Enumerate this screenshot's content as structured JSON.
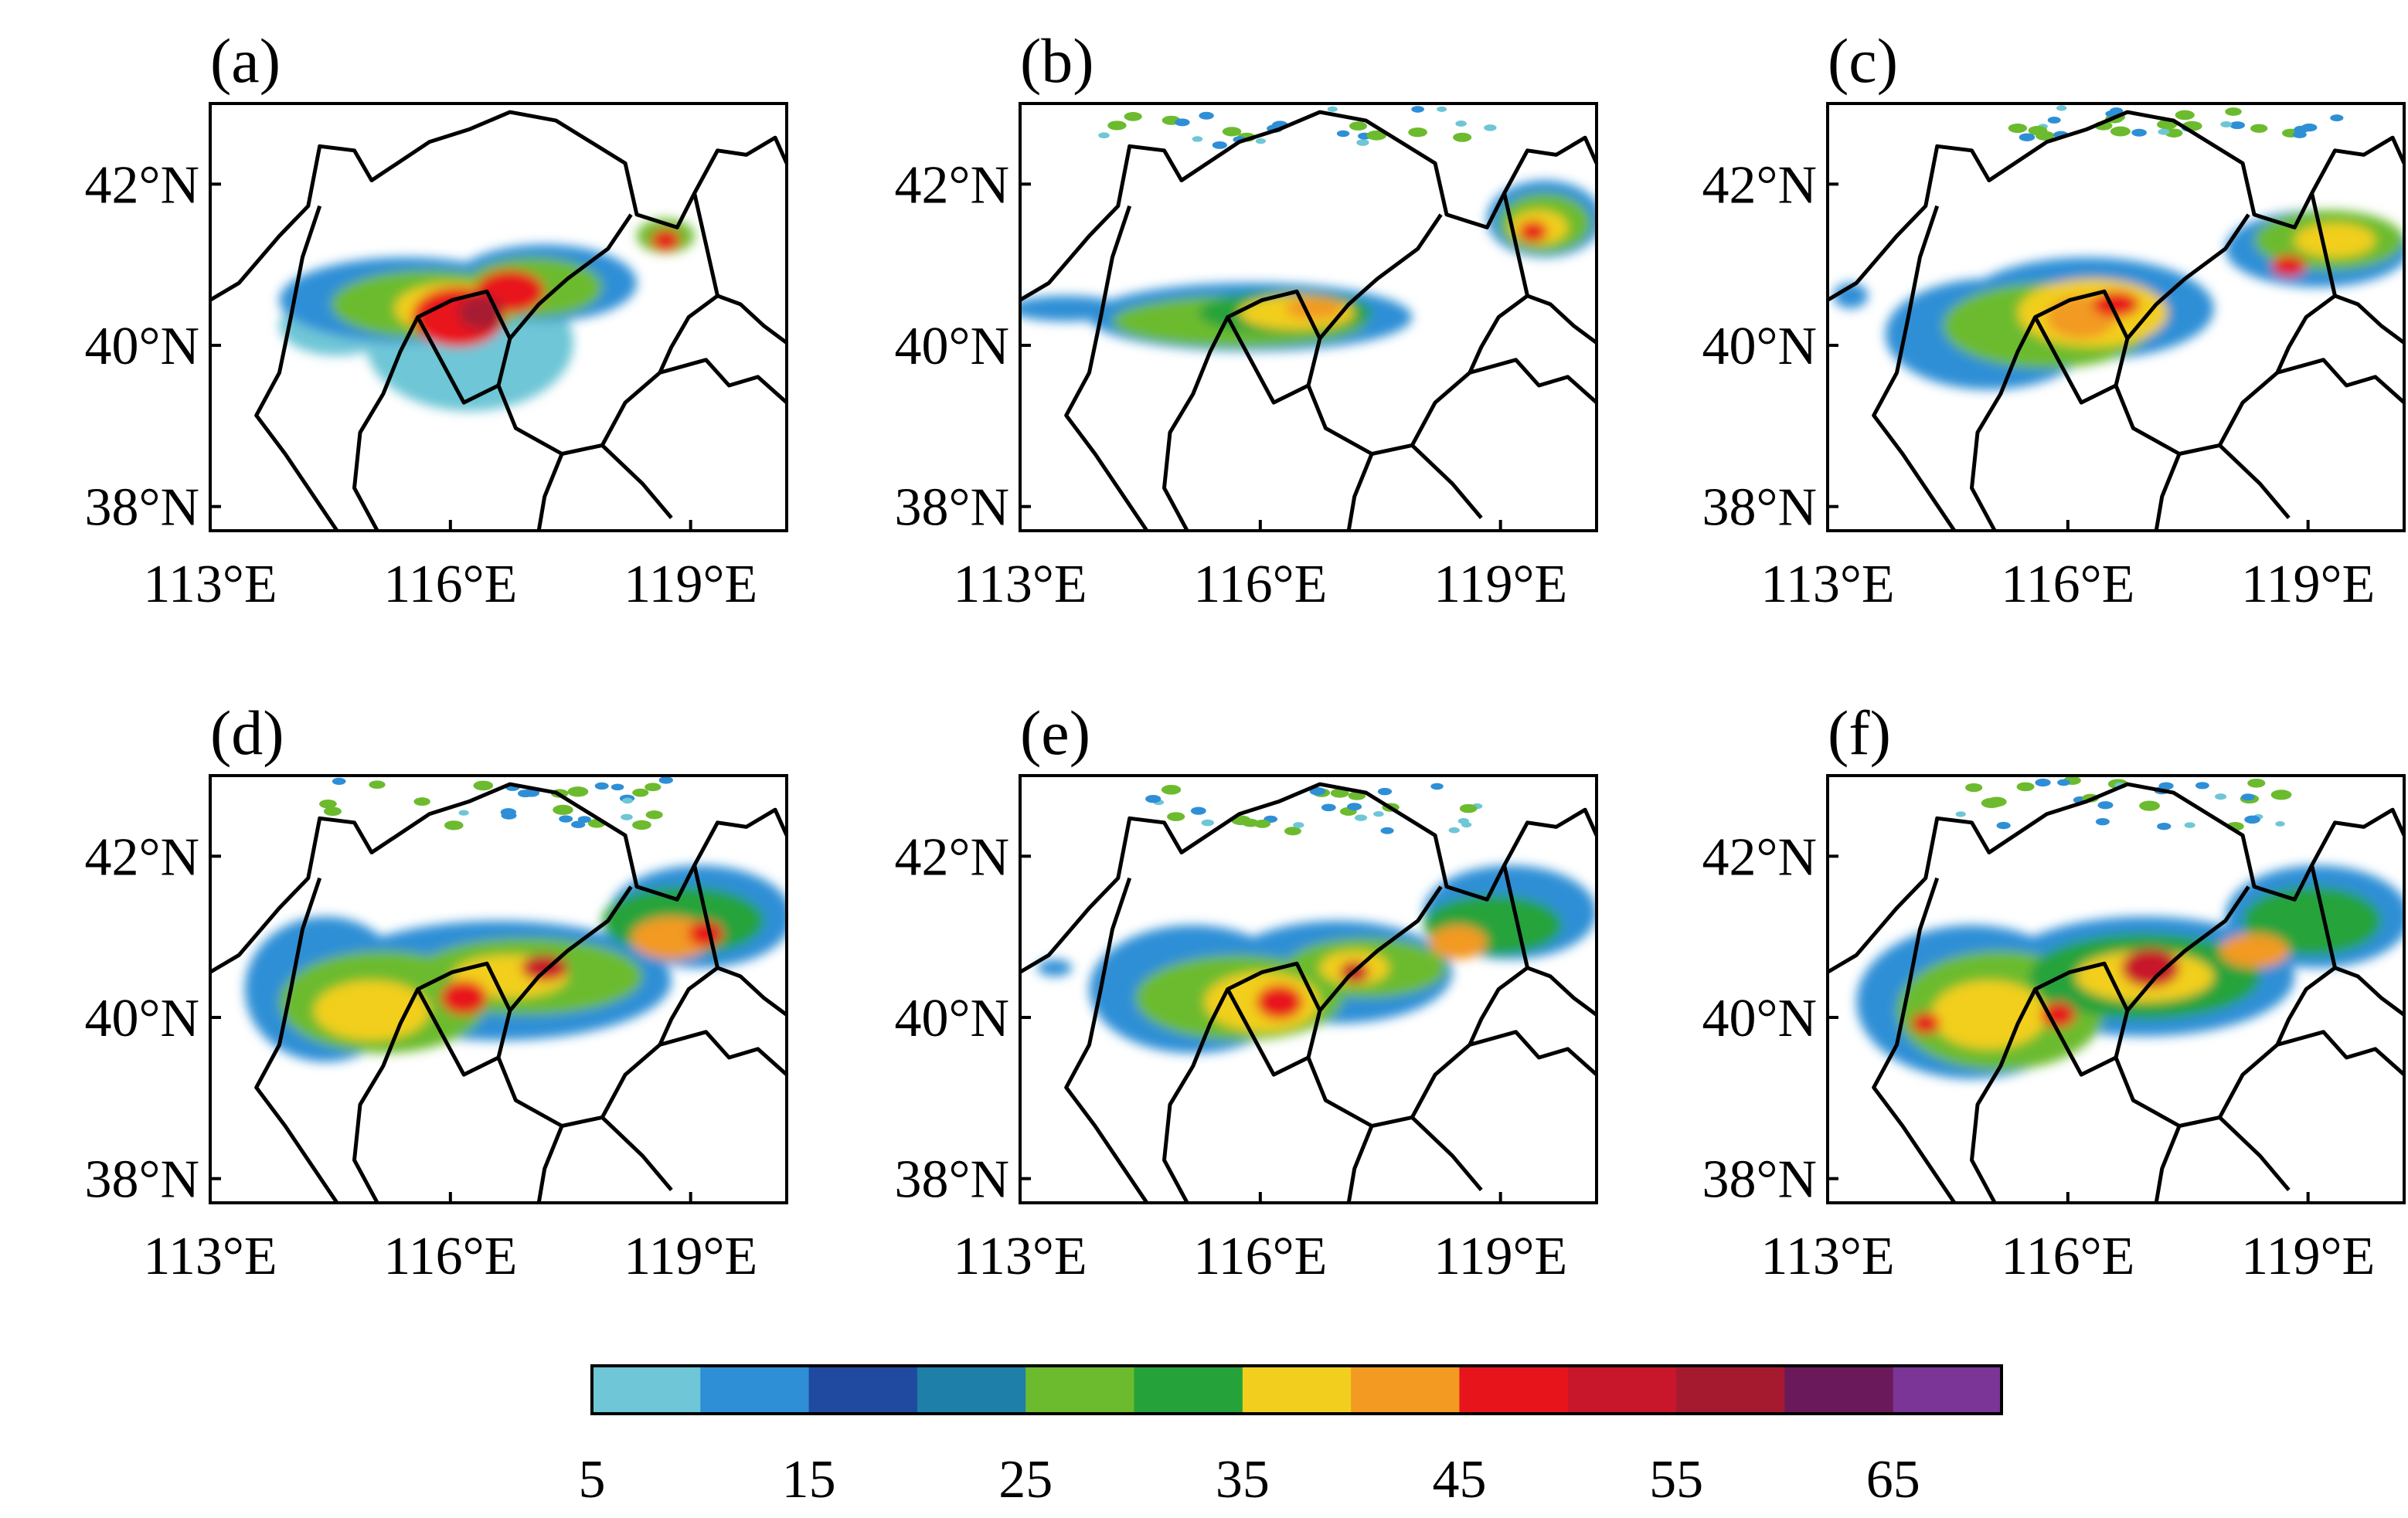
{
  "panels": [
    {
      "label": "(a)",
      "lat_ticks": [
        "42°N",
        "40°N",
        "38°N"
      ],
      "lon_ticks": [
        "113°E",
        "116°E",
        "119°E"
      ]
    },
    {
      "label": "(b)",
      "lat_ticks": [
        "42°N",
        "40°N",
        "38°N"
      ],
      "lon_ticks": [
        "113°E",
        "116°E",
        "119°E"
      ]
    },
    {
      "label": "(c)",
      "lat_ticks": [
        "42°N",
        "40°N",
        "38°N"
      ],
      "lon_ticks": [
        "113°E",
        "116°E",
        "119°E"
      ]
    },
    {
      "label": "(d)",
      "lat_ticks": [
        "42°N",
        "40°N",
        "38°N"
      ],
      "lon_ticks": [
        "113°E",
        "116°E",
        "119°E"
      ]
    },
    {
      "label": "(e)",
      "lat_ticks": [
        "42°N",
        "40°N",
        "38°N"
      ],
      "lon_ticks": [
        "113°E",
        "116°E",
        "119°E"
      ]
    },
    {
      "label": "(f)",
      "lat_ticks": [
        "42°N",
        "40°N",
        "38°N"
      ],
      "lon_ticks": [
        "113°E",
        "116°E",
        "119°E"
      ]
    }
  ],
  "map_extent": {
    "lon_min": 113,
    "lon_max": 120.2,
    "lat_min": 37.7,
    "lat_max": 43.0
  },
  "colorbar": {
    "tick_labels": [
      "5",
      "15",
      "25",
      "35",
      "45",
      "55",
      "65"
    ],
    "levels": [
      5,
      10,
      15,
      20,
      25,
      30,
      35,
      40,
      45,
      50,
      55,
      60,
      65,
      70
    ],
    "colors": [
      "#6ec6d6",
      "#2e8fd6",
      "#1f4aa0",
      "#1e7fa8",
      "#6cbb2e",
      "#25a33a",
      "#f2cf1e",
      "#f29a21",
      "#e8141c",
      "#c8162a",
      "#a61a30",
      "#6a1a5a",
      "#7a3596"
    ]
  }
}
